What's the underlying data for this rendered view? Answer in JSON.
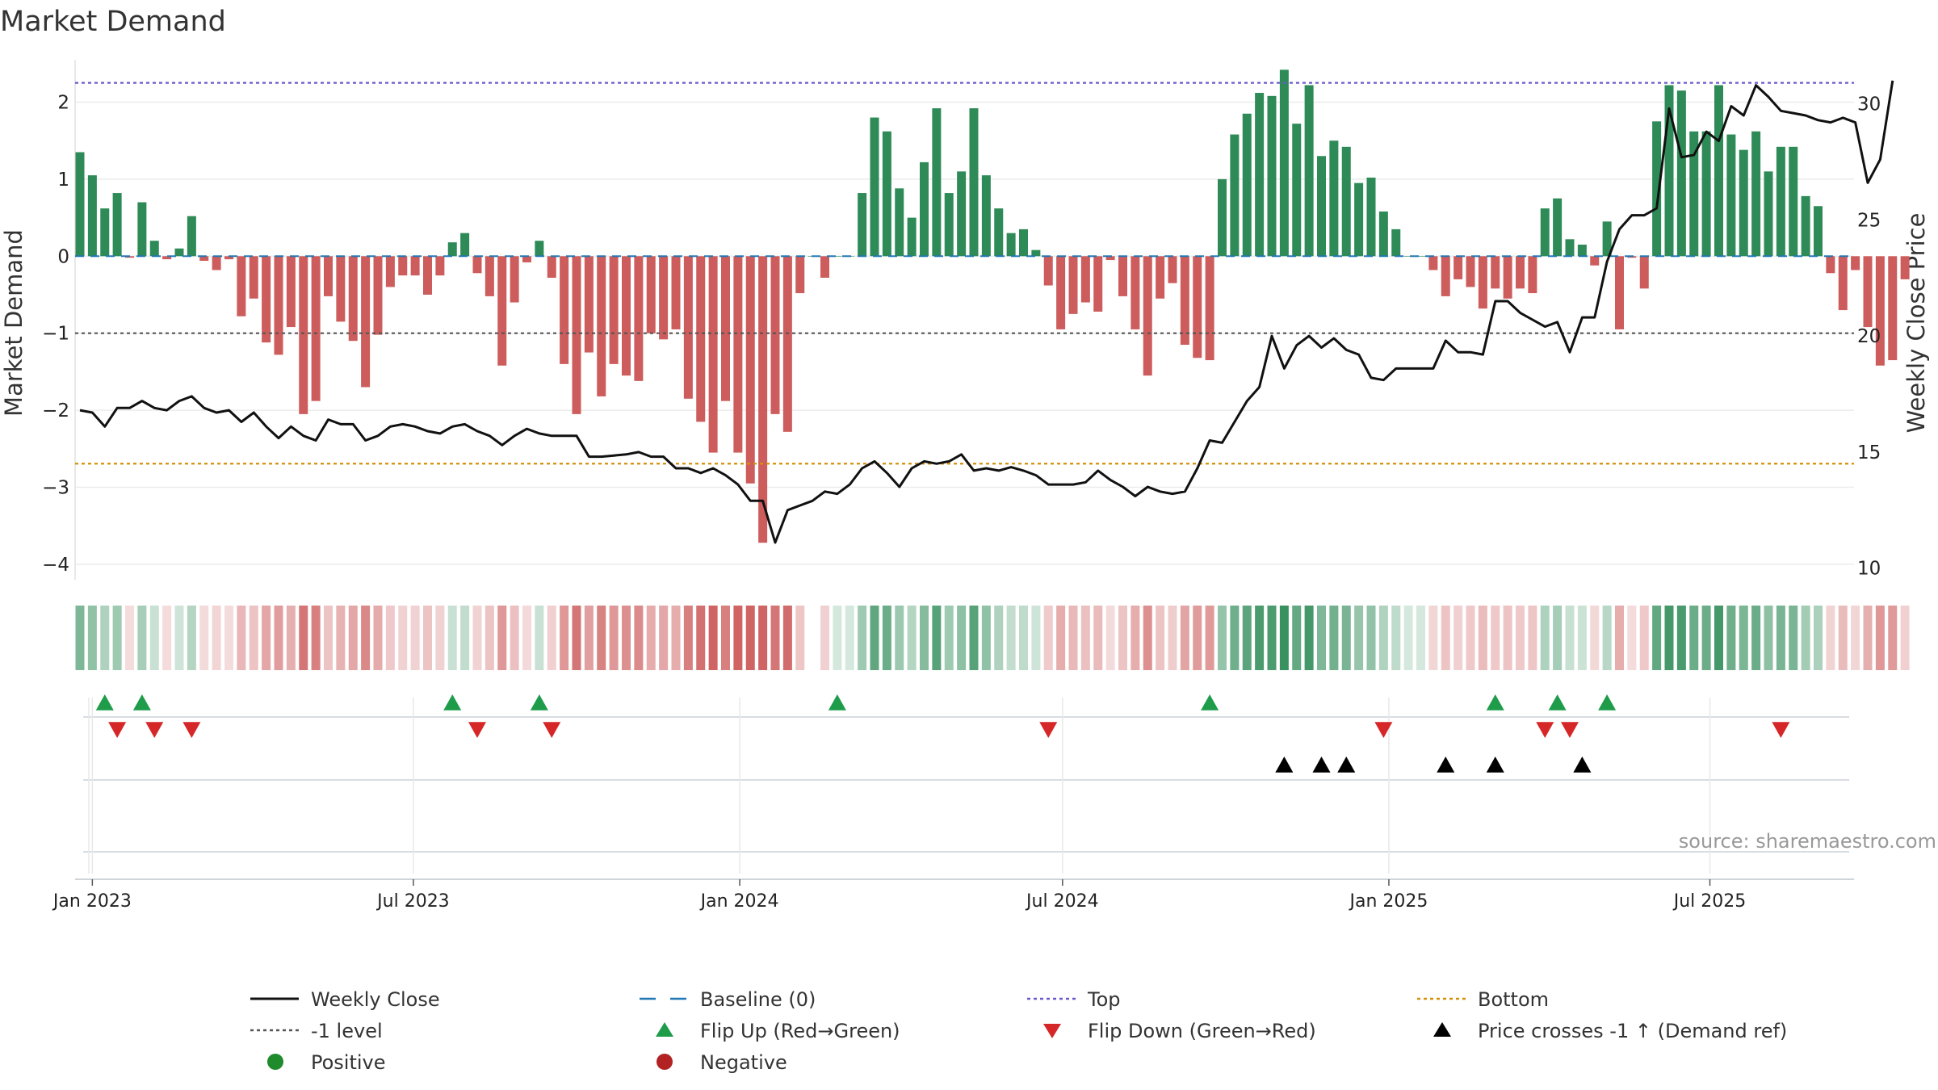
{
  "chart_data": {
    "type": "bar",
    "title": "Market Demand",
    "ylabel_left": "Market Demand",
    "ylabel_right": "Weekly Close Price",
    "ylim_left": [
      -4.2,
      2.55
    ],
    "ylim_right": [
      9.5,
      31.9
    ],
    "y_left_ticks": [
      -4,
      -3,
      -2,
      -1,
      0,
      1,
      2
    ],
    "y_right_ticks": [
      10,
      15,
      20,
      25,
      30
    ],
    "x_tick_labels": [
      "Jan 2023",
      "Jul 2023",
      "Jan 2024",
      "Jul 2024",
      "Jan 2025",
      "Jul 2025"
    ],
    "x_tick_dates": [
      "2023-01-01",
      "2023-07-01",
      "2024-01-01",
      "2024-07-01",
      "2025-01-01",
      "2025-07-01"
    ],
    "first_week": "2022-12-25",
    "reference_lines": {
      "top": 2.25,
      "bottom_price": 14.5,
      "minus_one_level": -1
    },
    "demand": [
      1.35,
      1.05,
      0.62,
      0.82,
      -0.02,
      0.7,
      0.2,
      -0.04,
      0.1,
      0.52,
      -0.06,
      -0.18,
      -0.04,
      -0.78,
      -0.55,
      -1.12,
      -1.28,
      -0.92,
      -2.05,
      -1.88,
      -0.52,
      -0.85,
      -1.1,
      -1.7,
      -1.02,
      -0.4,
      -0.25,
      -0.25,
      -0.5,
      -0.25,
      0.18,
      0.3,
      -0.22,
      -0.52,
      -1.42,
      -0.6,
      -0.08,
      0.2,
      -0.28,
      -1.4,
      -2.05,
      -1.25,
      -1.82,
      -1.4,
      -1.55,
      -1.62,
      -1.0,
      -1.08,
      -0.95,
      -1.85,
      -2.15,
      -2.55,
      -1.88,
      -2.55,
      -2.95,
      -3.72,
      -2.05,
      -2.28,
      -0.48,
      0.0,
      -0.28,
      0.0,
      0.0,
      0.82,
      1.8,
      1.62,
      0.88,
      0.5,
      1.22,
      1.92,
      0.82,
      1.1,
      1.92,
      1.05,
      0.62,
      0.3,
      0.35,
      0.08,
      -0.38,
      -0.95,
      -0.75,
      -0.6,
      -0.72,
      -0.05,
      -0.52,
      -0.95,
      -1.55,
      -0.55,
      -0.35,
      -1.15,
      -1.32,
      -1.35,
      1.0,
      1.58,
      1.85,
      2.12,
      2.08,
      2.42,
      1.72,
      2.22,
      1.3,
      1.5,
      1.42,
      0.95,
      1.02,
      0.58,
      0.35,
      0.0,
      0.0,
      -0.18,
      -0.52,
      -0.3,
      -0.4,
      -0.68,
      -0.42,
      -0.55,
      -0.42,
      -0.48,
      0.62,
      0.75,
      0.22,
      0.15,
      -0.12,
      0.45,
      -0.95,
      -0.02,
      -0.42,
      1.75,
      2.22,
      2.15,
      1.62,
      1.62,
      2.22,
      1.58,
      1.38,
      1.62,
      1.1,
      1.42,
      1.42,
      0.78,
      0.65,
      -0.22,
      -0.7,
      -0.18,
      -0.92,
      -1.42,
      -1.35,
      -0.3
    ],
    "weekly_close": [
      16.8,
      16.7,
      16.1,
      16.9,
      16.9,
      17.2,
      16.9,
      16.8,
      17.2,
      17.4,
      16.9,
      16.7,
      16.8,
      16.3,
      16.7,
      16.1,
      15.6,
      16.1,
      15.7,
      15.5,
      16.4,
      16.2,
      16.2,
      15.5,
      15.7,
      16.1,
      16.2,
      16.1,
      15.9,
      15.8,
      16.1,
      16.2,
      15.9,
      15.7,
      15.3,
      15.7,
      16.0,
      15.8,
      15.7,
      15.7,
      15.7,
      14.8,
      14.8,
      14.85,
      14.9,
      15.0,
      14.8,
      14.8,
      14.3,
      14.3,
      14.1,
      14.3,
      14.0,
      13.6,
      12.9,
      12.9,
      11.1,
      12.5,
      12.7,
      12.9,
      13.3,
      13.2,
      13.6,
      14.3,
      14.6,
      14.1,
      13.5,
      14.3,
      14.6,
      14.5,
      14.6,
      14.9,
      14.2,
      14.3,
      14.2,
      14.35,
      14.2,
      14.0,
      13.6,
      13.6,
      13.6,
      13.7,
      14.2,
      13.8,
      13.5,
      13.1,
      13.5,
      13.3,
      13.2,
      13.3,
      14.3,
      15.5,
      15.4,
      16.3,
      17.2,
      17.8,
      20.0,
      18.6,
      19.6,
      20.0,
      19.5,
      19.9,
      19.4,
      19.2,
      18.2,
      18.1,
      18.6,
      18.6,
      18.6,
      18.6,
      19.8,
      19.3,
      19.3,
      19.2,
      21.5,
      21.5,
      21.0,
      20.7,
      20.4,
      20.6,
      19.3,
      20.8,
      20.8,
      23.2,
      24.6,
      25.2,
      25.2,
      25.5,
      29.8,
      27.7,
      27.8,
      28.8,
      28.4,
      29.9,
      29.5,
      30.8,
      30.3,
      29.7,
      29.6,
      29.5,
      29.3,
      29.2,
      29.4,
      29.2,
      26.6,
      27.6,
      31.0
    ],
    "flip_up_weeks": [
      2,
      5,
      30,
      37,
      61,
      91,
      114,
      119,
      123
    ],
    "flip_down_weeks": [
      3,
      6,
      9,
      32,
      38,
      78,
      105,
      118,
      120,
      137
    ],
    "price_cross_weeks": [
      97,
      100,
      102,
      110,
      114,
      121
    ],
    "source": "source: sharemaestro.com",
    "legend": {
      "weekly_close": "Weekly Close",
      "baseline": "Baseline (0)",
      "top": "Top",
      "bottom": "Bottom",
      "minus_one": "-1 level",
      "flip_up": "Flip Up (Red→Green)",
      "flip_down": "Flip Down (Green→Red)",
      "price_cross": "Price crosses -1 ↑ (Demand ref)",
      "positive": "Positive",
      "negative": "Negative"
    },
    "colors": {
      "positive": "#2e8b57",
      "negative": "#cd5c5c",
      "price": "#111111",
      "baseline": "#1f77b4",
      "top": "#6a5acd",
      "bottom": "#d4900a",
      "minus_one": "#555555",
      "flip_up": "#1e9c4a",
      "flip_down": "#d62728",
      "price_cross": "#000000",
      "legend_positive": "#1f8b2c",
      "legend_negative": "#b22222"
    }
  }
}
